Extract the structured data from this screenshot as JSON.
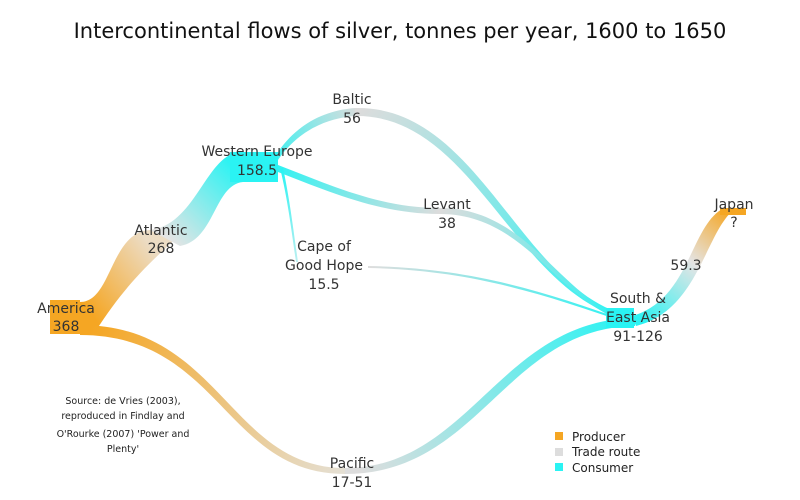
{
  "title": "Intercontinental flows of silver, tonnes per year, 1600 to 1650",
  "colors": {
    "producer": "#f5a623",
    "trade_route": "#dddddd",
    "consumer": "#2af3f3"
  },
  "nodes": {
    "america": {
      "name": "America",
      "value": "368"
    },
    "atlantic": {
      "name": "Atlantic",
      "value": "268"
    },
    "western_europe": {
      "name": "Western Europe",
      "value": "158.5"
    },
    "baltic": {
      "name": "Baltic",
      "value": "56"
    },
    "levant": {
      "name": "Levant",
      "value": "38"
    },
    "cape": {
      "name_line1": "Cape of",
      "name_line2": "Good Hope",
      "value": "15.5"
    },
    "south_east_asia": {
      "name_line1": "South &",
      "name_line2": "East Asia",
      "value": "91-126"
    },
    "japan": {
      "name": "Japan",
      "value": "?"
    },
    "japan_flow": {
      "value": "59.3"
    },
    "pacific": {
      "name": "Pacific",
      "value": "17-51"
    }
  },
  "source_note": [
    "Source: de Vries (2003),",
    "reproduced in Findlay and",
    "O'Rourke (2007) 'Power and",
    "Plenty'"
  ],
  "legend": [
    {
      "label": "Producer",
      "color": "#f5a623"
    },
    {
      "label": "Trade route",
      "color": "#dddddd"
    },
    {
      "label": "Consumer",
      "color": "#2af3f3"
    }
  ]
}
